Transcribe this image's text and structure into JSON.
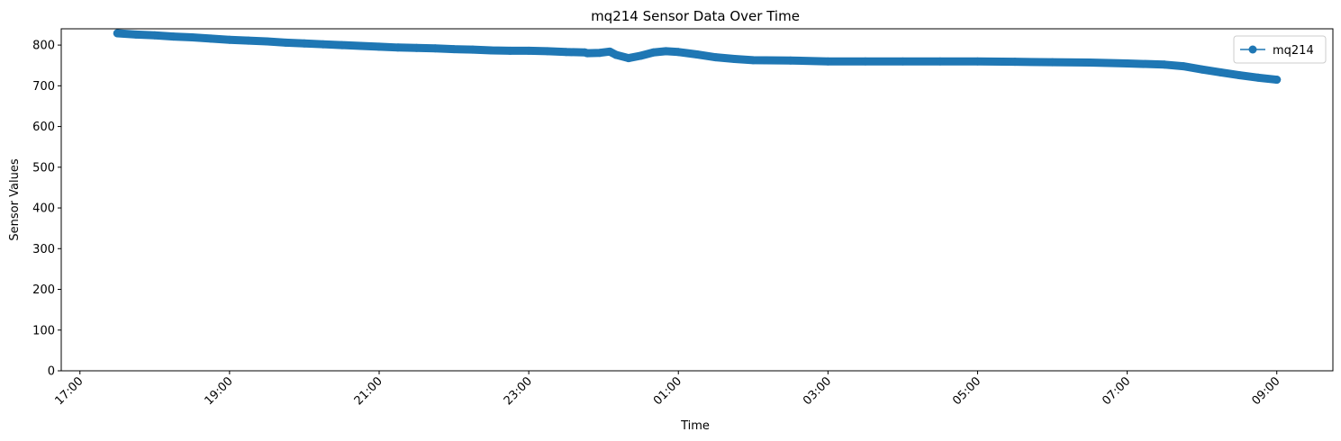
{
  "chart_data": {
    "type": "line",
    "title": "mq214 Sensor Data Over Time",
    "xlabel": "Time",
    "ylabel": "Sensor Values",
    "x_ticks": [
      "17:00",
      "19:00",
      "21:00",
      "23:00",
      "01:00",
      "03:00",
      "05:00",
      "07:00",
      "09:00"
    ],
    "xlim": [
      "16:45",
      "09:45"
    ],
    "y_ticks": [
      0,
      100,
      200,
      300,
      400,
      500,
      600,
      700,
      800
    ],
    "ylim": [
      0,
      840
    ],
    "grid": false,
    "legend_position": "top-right",
    "series": [
      {
        "name": "mq214",
        "color": "#1f77b4",
        "marker": "circle",
        "points": [
          [
            "17:30",
            829
          ],
          [
            "17:45",
            826
          ],
          [
            "18:00",
            824
          ],
          [
            "18:15",
            821
          ],
          [
            "18:30",
            819
          ],
          [
            "18:45",
            816
          ],
          [
            "19:00",
            813
          ],
          [
            "19:15",
            811
          ],
          [
            "19:30",
            809
          ],
          [
            "19:45",
            806
          ],
          [
            "20:00",
            804
          ],
          [
            "20:15",
            802
          ],
          [
            "20:30",
            800
          ],
          [
            "20:45",
            798
          ],
          [
            "21:00",
            796
          ],
          [
            "21:15",
            794
          ],
          [
            "21:30",
            793
          ],
          [
            "21:45",
            792
          ],
          [
            "22:00",
            790
          ],
          [
            "22:15",
            789
          ],
          [
            "22:30",
            787
          ],
          [
            "22:45",
            786
          ],
          [
            "23:00",
            786
          ],
          [
            "23:15",
            785
          ],
          [
            "23:30",
            783
          ],
          [
            "23:45",
            782
          ],
          [
            "23:47",
            780
          ],
          [
            "23:57",
            781
          ],
          [
            "00:05",
            784
          ],
          [
            "00:10",
            776
          ],
          [
            "00:20",
            768
          ],
          [
            "00:30",
            774
          ],
          [
            "00:40",
            782
          ],
          [
            "00:50",
            785
          ],
          [
            "01:00",
            783
          ],
          [
            "01:15",
            777
          ],
          [
            "01:30",
            770
          ],
          [
            "01:45",
            766
          ],
          [
            "02:00",
            763
          ],
          [
            "02:30",
            762
          ],
          [
            "03:00",
            760
          ],
          [
            "03:30",
            760
          ],
          [
            "04:00",
            760
          ],
          [
            "04:30",
            760
          ],
          [
            "05:00",
            760
          ],
          [
            "05:30",
            759
          ],
          [
            "06:00",
            758
          ],
          [
            "06:30",
            757
          ],
          [
            "07:00",
            755
          ],
          [
            "07:30",
            752
          ],
          [
            "07:45",
            748
          ],
          [
            "08:00",
            740
          ],
          [
            "08:15",
            733
          ],
          [
            "08:30",
            726
          ],
          [
            "08:45",
            720
          ],
          [
            "09:00",
            715
          ]
        ]
      }
    ]
  }
}
